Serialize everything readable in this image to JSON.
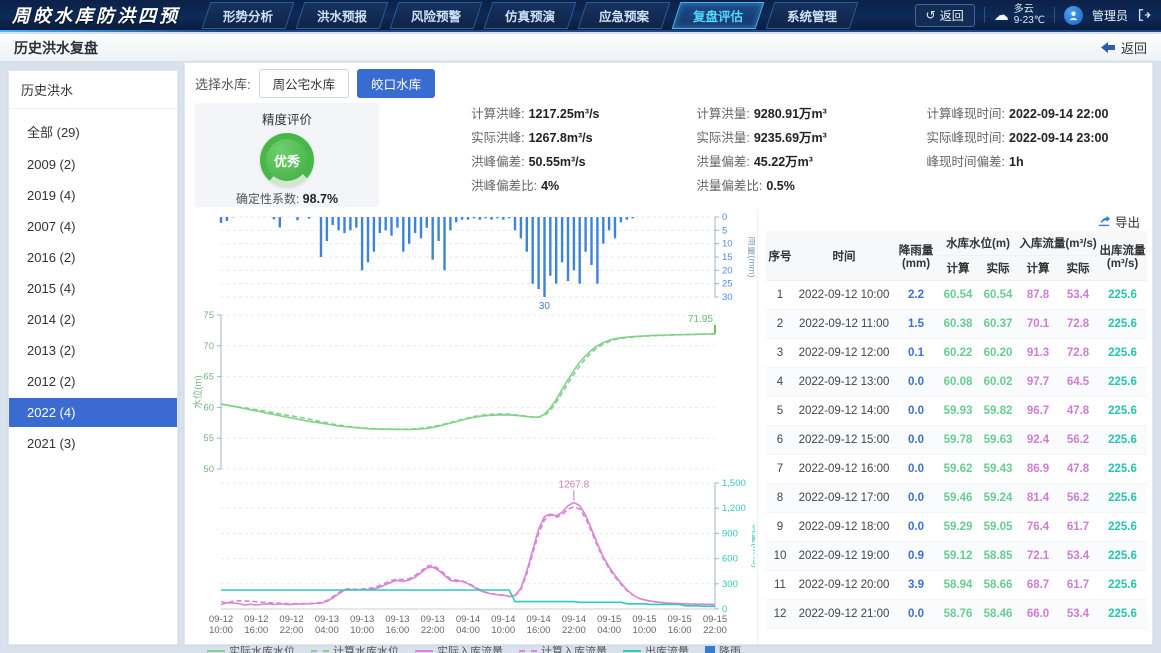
{
  "navbar": {
    "title": "周皎水库防洪四预",
    "menu": [
      "形势分析",
      "洪水预报",
      "风险预警",
      "仿真预演",
      "应急预案",
      "复盘评估",
      "系统管理"
    ],
    "active_menu": "复盘评估",
    "back_label": "返回",
    "weather": {
      "condition": "多云",
      "temp": "9-23℃"
    },
    "user": "管理员"
  },
  "page_header": {
    "title": "历史洪水复盘",
    "back_label": "返回"
  },
  "sidebar": {
    "title": "历史洪水",
    "items": [
      {
        "label": "全部",
        "count": "29",
        "active": false
      },
      {
        "label": "2009",
        "count": "2",
        "active": false
      },
      {
        "label": "2019",
        "count": "4",
        "active": false
      },
      {
        "label": "2007",
        "count": "4",
        "active": false
      },
      {
        "label": "2016",
        "count": "2",
        "active": false
      },
      {
        "label": "2015",
        "count": "4",
        "active": false
      },
      {
        "label": "2014",
        "count": "2",
        "active": false
      },
      {
        "label": "2013",
        "count": "2",
        "active": false
      },
      {
        "label": "2012",
        "count": "2",
        "active": false
      },
      {
        "label": "2022",
        "count": "4",
        "active": true
      },
      {
        "label": "2021",
        "count": "3",
        "active": false
      }
    ]
  },
  "toolbar": {
    "label": "选择水库:",
    "reservoirs": [
      "周公宅水库",
      "皎口水库"
    ],
    "active": "皎口水库"
  },
  "evaluation": {
    "title": "精度评价",
    "grade": "优秀",
    "coefficient_label": "确定性系数:",
    "coefficient": "98.7%"
  },
  "metrics": {
    "columns": [
      {
        "items": [
          {
            "label": "计算洪峰:",
            "value": "1217.25m³/s"
          },
          {
            "label": "实际洪峰:",
            "value": "1267.8m³/s"
          },
          {
            "label": "洪峰偏差:",
            "value": "50.55m³/s"
          },
          {
            "label": "洪峰偏差比:",
            "value": "4%"
          }
        ]
      },
      {
        "items": [
          {
            "label": "计算洪量:",
            "value": "9280.91万m³"
          },
          {
            "label": "实际洪量:",
            "value": "9235.69万m³"
          },
          {
            "label": "洪量偏差:",
            "value": "45.22万m³"
          },
          {
            "label": "洪量偏差比:",
            "value": "0.5%"
          }
        ]
      },
      {
        "items": [
          {
            "label": "计算峰现时间:",
            "value": "2022-09-14 22:00"
          },
          {
            "label": "实际峰现时间:",
            "value": "2022-09-14 23:00"
          },
          {
            "label": "峰现时间偏差:",
            "value": "1h"
          }
        ]
      }
    ]
  },
  "table": {
    "export_label": "导出",
    "header": {
      "seq": "序号",
      "time": "时间",
      "rain": "降雨量(mm)",
      "level_group": "水库水位(m)",
      "inflow_group": "入库流量(m³/s)",
      "outflow": "出库流量(m³/s)",
      "calc": "计算",
      "actual": "实际"
    },
    "rows": [
      {
        "seq": "1",
        "time": "2022-09-12 10:00",
        "rain": "2.2",
        "level_calc": "60.54",
        "level_actual": "60.54",
        "inflow_calc": "87.8",
        "inflow_actual": "53.4",
        "outflow": "225.6"
      },
      {
        "seq": "2",
        "time": "2022-09-12 11:00",
        "rain": "1.5",
        "level_calc": "60.38",
        "level_actual": "60.37",
        "inflow_calc": "70.1",
        "inflow_actual": "72.8",
        "outflow": "225.6"
      },
      {
        "seq": "3",
        "time": "2022-09-12 12:00",
        "rain": "0.1",
        "level_calc": "60.22",
        "level_actual": "60.20",
        "inflow_calc": "91.3",
        "inflow_actual": "72.8",
        "outflow": "225.6"
      },
      {
        "seq": "4",
        "time": "2022-09-12 13:00",
        "rain": "0.0",
        "level_calc": "60.08",
        "level_actual": "60.02",
        "inflow_calc": "97.7",
        "inflow_actual": "64.5",
        "outflow": "225.6"
      },
      {
        "seq": "5",
        "time": "2022-09-12 14:00",
        "rain": "0.0",
        "level_calc": "59.93",
        "level_actual": "59.82",
        "inflow_calc": "96.7",
        "inflow_actual": "47.8",
        "outflow": "225.6"
      },
      {
        "seq": "6",
        "time": "2022-09-12 15:00",
        "rain": "0.0",
        "level_calc": "59.78",
        "level_actual": "59.63",
        "inflow_calc": "92.4",
        "inflow_actual": "56.2",
        "outflow": "225.6"
      },
      {
        "seq": "7",
        "time": "2022-09-12 16:00",
        "rain": "0.0",
        "level_calc": "59.62",
        "level_actual": "59.43",
        "inflow_calc": "86.9",
        "inflow_actual": "47.8",
        "outflow": "225.6"
      },
      {
        "seq": "8",
        "time": "2022-09-12 17:00",
        "rain": "0.0",
        "level_calc": "59.46",
        "level_actual": "59.24",
        "inflow_calc": "81.4",
        "inflow_actual": "56.2",
        "outflow": "225.6"
      },
      {
        "seq": "9",
        "time": "2022-09-12 18:00",
        "rain": "0.0",
        "level_calc": "59.29",
        "level_actual": "59.05",
        "inflow_calc": "76.4",
        "inflow_actual": "61.7",
        "outflow": "225.6"
      },
      {
        "seq": "10",
        "time": "2022-09-12 19:00",
        "rain": "0.9",
        "level_calc": "59.12",
        "level_actual": "58.85",
        "inflow_calc": "72.1",
        "inflow_actual": "53.4",
        "outflow": "225.6"
      },
      {
        "seq": "11",
        "time": "2022-09-12 20:00",
        "rain": "3.9",
        "level_calc": "58.94",
        "level_actual": "58.66",
        "inflow_calc": "68.7",
        "inflow_actual": "61.7",
        "outflow": "225.6"
      },
      {
        "seq": "12",
        "time": "2022-09-12 21:00",
        "rain": "0.0",
        "level_calc": "58.76",
        "level_actual": "58.46",
        "inflow_calc": "66.0",
        "inflow_actual": "53.4",
        "outflow": "225.6"
      }
    ]
  },
  "legend": [
    {
      "label": "实际水库水位",
      "type": "line",
      "color": "#82d18a"
    },
    {
      "label": "计算水库水位",
      "type": "dash",
      "color": "#82d18a"
    },
    {
      "label": "实际入库流量",
      "type": "line",
      "color": "#d886d6"
    },
    {
      "label": "计算入库流量",
      "type": "dash",
      "color": "#d886d6"
    },
    {
      "label": "出库流量",
      "type": "line",
      "color": "#2fc9c0"
    },
    {
      "label": "降雨",
      "type": "square",
      "color": "#2f7fd8"
    }
  ],
  "chart_data": {
    "x_ticks": [
      "09-12 10:00",
      "09-12 16:00",
      "09-12 22:00",
      "09-13 04:00",
      "09-13 10:00",
      "09-13 16:00",
      "09-13 22:00",
      "09-14 04:00",
      "09-14 10:00",
      "09-14 16:00",
      "09-14 22:00",
      "09-15 04:00",
      "09-15 10:00",
      "09-15 16:00",
      "09-15 22:00"
    ],
    "hours_total": 84,
    "rain": {
      "type": "bar",
      "ylabel": "雨量(mm)",
      "ylim": [
        0,
        30
      ],
      "y_ticks": [
        0,
        5,
        10,
        15,
        20,
        25,
        30
      ],
      "inverted": true,
      "color": "#3e83d8",
      "max_label": "30",
      "values": [
        2.2,
        1.5,
        0.1,
        0,
        0,
        0,
        0,
        0,
        0,
        0.9,
        3.9,
        0,
        0,
        1.2,
        0,
        0.6,
        0,
        15,
        9,
        3,
        5,
        6,
        5,
        4,
        20,
        17,
        13,
        6,
        5,
        7,
        4,
        13,
        10,
        6,
        8,
        4,
        16,
        9,
        20,
        5,
        2,
        1,
        1,
        0.5,
        1,
        0.5,
        1,
        0.5,
        1,
        0.5,
        5,
        8,
        13,
        25,
        27,
        30,
        22,
        25,
        17,
        24,
        20,
        25,
        13,
        18,
        25,
        10,
        5,
        8,
        2,
        1,
        0.5,
        0,
        0,
        0,
        0,
        0,
        0,
        0,
        0,
        0,
        0,
        0,
        0,
        0,
        0
      ]
    },
    "water_level": {
      "type": "line",
      "ylabel": "水位(m)",
      "ylim": [
        50,
        75
      ],
      "y_ticks": [
        50,
        55,
        60,
        65,
        70,
        75
      ],
      "end_label": "71.95",
      "series": [
        {
          "name": "实际水库水位",
          "style": "solid",
          "color": "#82d18a",
          "values": [
            60.54,
            60.37,
            60.2,
            60.02,
            59.82,
            59.63,
            59.43,
            59.24,
            59.05,
            58.85,
            58.66,
            58.46,
            58.3,
            58.1,
            57.9,
            57.75,
            57.6,
            57.45,
            57.3,
            57.15,
            57.0,
            56.9,
            56.8,
            56.7,
            56.62,
            56.55,
            56.5,
            56.47,
            56.45,
            56.44,
            56.43,
            56.42,
            56.42,
            56.45,
            56.5,
            56.6,
            56.75,
            56.95,
            57.2,
            57.45,
            57.7,
            57.95,
            58.2,
            58.4,
            58.55,
            58.65,
            58.72,
            58.78,
            58.8,
            58.78,
            58.72,
            58.62,
            58.5,
            58.42,
            58.4,
            58.9,
            59.9,
            61.3,
            62.9,
            64.5,
            66.0,
            67.3,
            68.4,
            69.3,
            70.0,
            70.5,
            70.9,
            71.15,
            71.3,
            71.4,
            71.5,
            71.55,
            71.6,
            71.65,
            71.7,
            71.72,
            71.75,
            71.78,
            71.8,
            71.82,
            71.85,
            71.88,
            71.9,
            71.92,
            71.95
          ]
        },
        {
          "name": "计算水库水位",
          "style": "dashed",
          "color": "#82d18a",
          "values": [
            60.54,
            60.38,
            60.22,
            60.08,
            59.93,
            59.78,
            59.62,
            59.46,
            59.29,
            59.12,
            58.94,
            58.76,
            58.6,
            58.45,
            58.28,
            58.1,
            57.9,
            57.7,
            57.5,
            57.3,
            57.12,
            56.98,
            56.86,
            56.76,
            56.68,
            56.6,
            56.55,
            56.5,
            56.48,
            56.47,
            56.46,
            56.46,
            56.48,
            56.52,
            56.6,
            56.72,
            56.88,
            57.08,
            57.3,
            57.55,
            57.8,
            58.05,
            58.3,
            58.52,
            58.68,
            58.8,
            58.88,
            58.92,
            58.95,
            58.9,
            58.8,
            58.68,
            58.55,
            58.45,
            58.42,
            58.7,
            59.5,
            60.8,
            62.3,
            63.9,
            65.4,
            66.7,
            67.9,
            68.9,
            69.7,
            70.25,
            70.7,
            71.0,
            71.2,
            71.32,
            71.42,
            71.5,
            71.55,
            71.6,
            71.65,
            71.68,
            71.72,
            71.75,
            71.78,
            71.8,
            71.83,
            71.86,
            71.89,
            71.91,
            71.93
          ]
        }
      ]
    },
    "flow": {
      "type": "line",
      "ylabel": "流量(m³/s)",
      "ylim": [
        0,
        1500
      ],
      "y_ticks": [
        0,
        300,
        600,
        900,
        1200,
        1500
      ],
      "y_tick_labels": [
        "0",
        "300",
        "600",
        "900",
        "1,200",
        "1,500"
      ],
      "peak_label": "1267.8",
      "series": [
        {
          "name": "实际入库流量",
          "style": "solid",
          "color": "#d886d6",
          "values": [
            53.4,
            72.8,
            72.8,
            64.5,
            47.8,
            56.2,
            47.8,
            56.2,
            61.7,
            53.4,
            61.7,
            53.4,
            55,
            58,
            60,
            62,
            65,
            70,
            90,
            130,
            180,
            225,
            230,
            228,
            230,
            232,
            240,
            260,
            290,
            320,
            340,
            330,
            345,
            380,
            430,
            490,
            500,
            460,
            400,
            340,
            330,
            330,
            300,
            260,
            220,
            195,
            180,
            170,
            165,
            150,
            160,
            250,
            450,
            700,
            950,
            1100,
            1130,
            1110,
            1150,
            1230,
            1267.8,
            1230,
            1120,
            950,
            780,
            620,
            500,
            400,
            310,
            230,
            170,
            130,
            110,
            95,
            85,
            78,
            72,
            68,
            65,
            62,
            60,
            58,
            57,
            56,
            55
          ]
        },
        {
          "name": "计算入库流量",
          "style": "dashed",
          "color": "#d886d6",
          "values": [
            87.8,
            70.1,
            91.3,
            97.7,
            96.7,
            92.4,
            86.9,
            81.4,
            76.4,
            72.1,
            68.7,
            66.0,
            64,
            63,
            64,
            66,
            70,
            78,
            100,
            145,
            195,
            235,
            240,
            235,
            238,
            245,
            255,
            280,
            310,
            340,
            355,
            350,
            360,
            400,
            450,
            510,
            520,
            480,
            420,
            360,
            345,
            335,
            310,
            270,
            230,
            200,
            185,
            172,
            162,
            148,
            155,
            230,
            420,
            660,
            900,
            1060,
            1120,
            1090,
            1120,
            1190,
            1217.25,
            1190,
            1080,
            920,
            750,
            600,
            480,
            380,
            295,
            220,
            165,
            128,
            108,
            93,
            83,
            76,
            70,
            66,
            63,
            60,
            58,
            56,
            55,
            54,
            54
          ]
        },
        {
          "name": "出库流量",
          "style": "solid",
          "color": "#2fc9c0",
          "values": [
            225.6,
            225.6,
            225.6,
            225.6,
            225.6,
            225.6,
            225.6,
            225.6,
            225.6,
            225.6,
            225.6,
            225.6,
            225.6,
            225.6,
            225.6,
            225.6,
            225.6,
            225.6,
            225.6,
            225.6,
            225.6,
            225.6,
            225.6,
            225.6,
            225.6,
            225.6,
            225.6,
            225.6,
            225.6,
            225.6,
            225.6,
            225.6,
            225.6,
            225.6,
            225.6,
            225.6,
            225.6,
            225.6,
            225.6,
            225.6,
            225.6,
            225.6,
            225.6,
            225.6,
            225.6,
            225.6,
            225.6,
            225.6,
            225.6,
            225.6,
            88,
            88,
            88,
            88,
            88,
            88,
            88,
            88,
            88,
            88,
            88,
            80,
            80,
            80,
            80,
            80,
            80,
            80,
            80,
            62,
            62,
            62,
            62,
            55,
            55,
            55,
            55,
            55,
            55,
            38,
            38,
            38,
            32,
            32,
            32
          ]
        }
      ]
    }
  },
  "colors": {
    "accent": "#3a6bd0",
    "grade_green": "#49b649",
    "rain_blue": "#3e83d8",
    "level_green": "#82d18a",
    "inflow_pink": "#d886d6",
    "outflow_teal": "#2fc9c0"
  }
}
